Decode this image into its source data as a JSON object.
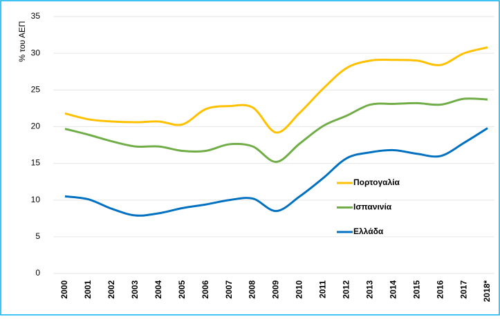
{
  "chart_data": {
    "type": "line",
    "y_label": "% του ΑΕΠ",
    "categories": [
      "2000",
      "2001",
      "2002",
      "2003",
      "2004",
      "2005",
      "2006",
      "2007",
      "2008",
      "2009",
      "2010",
      "2011",
      "2012",
      "2013",
      "2014",
      "2015",
      "2016",
      "2017",
      "2018*"
    ],
    "series": [
      {
        "name": "Πορτογαλία",
        "color": "#FFC000",
        "values": [
          21.8,
          21.0,
          20.7,
          20.6,
          20.7,
          20.3,
          22.4,
          22.8,
          22.6,
          19.2,
          21.9,
          25.2,
          28.0,
          29.0,
          29.1,
          29.0,
          28.4,
          30.0,
          30.8
        ]
      },
      {
        "name": "Ισπανινία",
        "color": "#70AD47",
        "values": [
          19.7,
          18.9,
          18.0,
          17.3,
          17.3,
          16.7,
          16.7,
          17.6,
          17.3,
          15.2,
          17.7,
          20.1,
          21.5,
          23.0,
          23.1,
          23.2,
          23.0,
          23.8,
          23.7
        ]
      },
      {
        "name": "Ελλάδα",
        "color": "#0070C0",
        "values": [
          10.5,
          10.1,
          8.8,
          7.9,
          8.2,
          8.9,
          9.4,
          10.0,
          10.2,
          8.5,
          10.5,
          13.0,
          15.7,
          16.5,
          16.8,
          16.3,
          16.0,
          17.8,
          19.8
        ]
      }
    ],
    "ylim": [
      0,
      35
    ],
    "yticks": [
      0,
      5,
      10,
      15,
      20,
      25,
      30,
      35
    ],
    "grid": true
  }
}
